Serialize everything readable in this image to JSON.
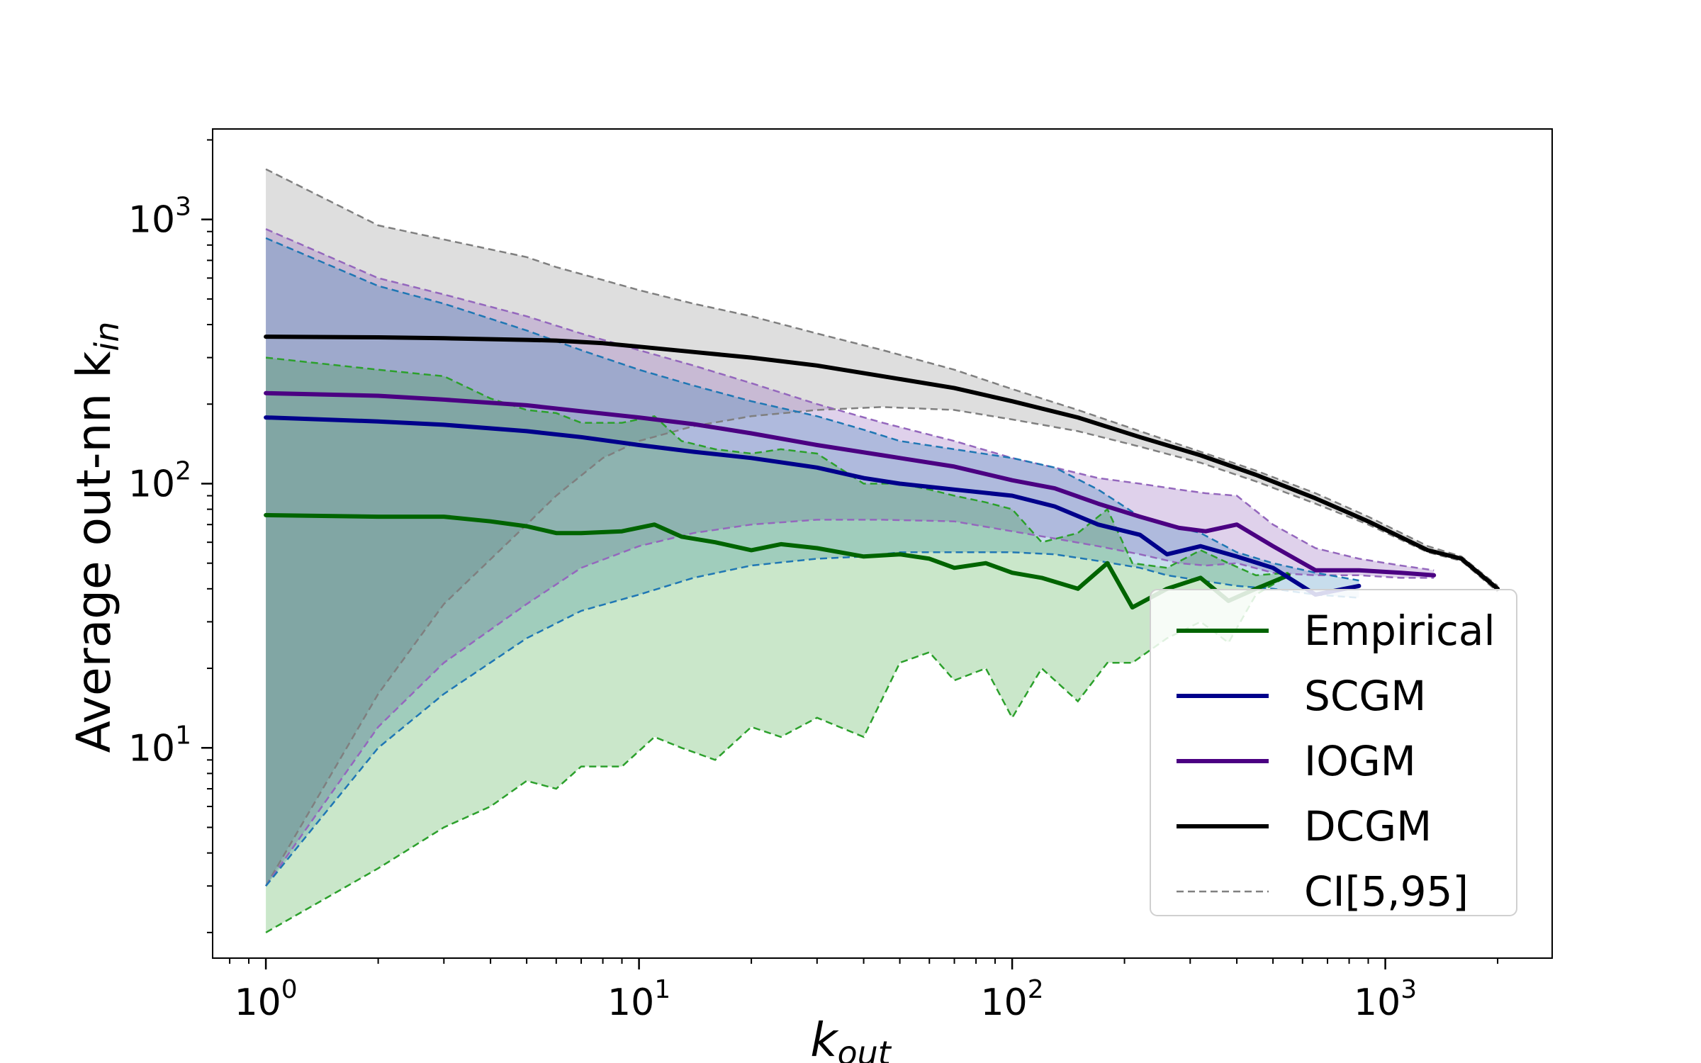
{
  "chart_data": {
    "type": "line",
    "title": "",
    "xlabel": "k",
    "xlabel_sub": "out",
    "ylabel": "Average out-nn k",
    "ylabel_sub": "in",
    "xscale": "log",
    "yscale": "log",
    "xlim": [
      0.72,
      2800
    ],
    "ylim": [
      1.6,
      2200
    ],
    "xticks": [
      {
        "value": 1,
        "base": "10",
        "exp": "0"
      },
      {
        "value": 10,
        "base": "10",
        "exp": "1"
      },
      {
        "value": 100,
        "base": "10",
        "exp": "2"
      },
      {
        "value": 1000,
        "base": "10",
        "exp": "3"
      }
    ],
    "yticks": [
      {
        "value": 10,
        "base": "10",
        "exp": "1"
      },
      {
        "value": 100,
        "base": "10",
        "exp": "2"
      },
      {
        "value": 1000,
        "base": "10",
        "exp": "3"
      }
    ],
    "legend_position": "lower right",
    "ci_label": "CI[5,95]",
    "ci_color": "#808080",
    "series": [
      {
        "name": "DCGM",
        "color": "#000000",
        "band_fill": "#c8c8c8",
        "band_opacity": 0.6,
        "ci_line_color": "#7f7f7f",
        "x": [
          1,
          2,
          3,
          5,
          6,
          8,
          10,
          14,
          20,
          30,
          45,
          70,
          100,
          150,
          220,
          320,
          450,
          650,
          900,
          1300,
          1600,
          2000
        ],
        "y": [
          360,
          358,
          355,
          350,
          348,
          340,
          330,
          315,
          300,
          280,
          255,
          230,
          205,
          178,
          150,
          128,
          108,
          88,
          72,
          56,
          52,
          40
        ],
        "lower": [
          3,
          16,
          35,
          70,
          90,
          125,
          145,
          165,
          180,
          190,
          195,
          190,
          175,
          158,
          138,
          120,
          102,
          84,
          70,
          55,
          51,
          39
        ],
        "upper": [
          1550,
          950,
          840,
          720,
          660,
          590,
          540,
          480,
          430,
          370,
          320,
          270,
          228,
          190,
          158,
          132,
          112,
          92,
          75,
          58,
          53,
          41
        ]
      },
      {
        "name": "IOGM",
        "color": "#4b0082",
        "band_fill": "#9467bd",
        "band_opacity": 0.3,
        "ci_line_color": "#9467bd",
        "x": [
          1,
          2,
          3,
          5,
          7,
          10,
          14,
          20,
          30,
          45,
          70,
          100,
          130,
          170,
          220,
          280,
          330,
          400,
          500,
          650,
          850,
          1100,
          1350
        ],
        "y": [
          220,
          215,
          208,
          198,
          188,
          178,
          168,
          155,
          140,
          128,
          116,
          103,
          96,
          84,
          75,
          68,
          66,
          70,
          58,
          47,
          47,
          46,
          45
        ],
        "lower": [
          3,
          12,
          21,
          35,
          48,
          58,
          65,
          70,
          73,
          73,
          72,
          66,
          62,
          58,
          54,
          50,
          49,
          50,
          46,
          45,
          45,
          44,
          44
        ],
        "upper": [
          920,
          600,
          520,
          430,
          370,
          320,
          280,
          240,
          200,
          170,
          145,
          125,
          115,
          105,
          100,
          95,
          92,
          90,
          70,
          57,
          52,
          49,
          47
        ]
      },
      {
        "name": "SCGM",
        "color": "#00008b",
        "band_fill": "#1f77b4",
        "band_opacity": 0.25,
        "ci_line_color": "#1f77b4",
        "x": [
          1,
          2,
          3,
          5,
          7,
          10,
          14,
          20,
          30,
          40,
          50,
          70,
          100,
          130,
          170,
          220,
          260,
          320,
          400,
          500,
          650,
          850
        ],
        "y": [
          178,
          172,
          167,
          158,
          150,
          140,
          132,
          125,
          115,
          105,
          100,
          95,
          90,
          82,
          70,
          64,
          54,
          58,
          53,
          48,
          38,
          41
        ],
        "lower": [
          3,
          10,
          16,
          26,
          33,
          38,
          44,
          49,
          52,
          53,
          55,
          55,
          55,
          54,
          51,
          48,
          45,
          43,
          41,
          40,
          38,
          37
        ],
        "upper": [
          850,
          560,
          480,
          380,
          320,
          270,
          235,
          205,
          180,
          160,
          145,
          135,
          125,
          115,
          95,
          75,
          70,
          65,
          55,
          50,
          46,
          43
        ]
      },
      {
        "name": "Empirical",
        "color": "#006400",
        "band_fill": "#2ca02c",
        "band_opacity": 0.25,
        "ci_line_color": "#2ca02c",
        "x": [
          1,
          2,
          3,
          4,
          5,
          6,
          7,
          9,
          11,
          13,
          16,
          20,
          24,
          30,
          40,
          50,
          60,
          70,
          85,
          100,
          120,
          150,
          180,
          210,
          260,
          320,
          380,
          450,
          550
        ],
        "y": [
          76,
          75,
          75,
          72,
          69,
          65,
          65,
          66,
          70,
          63,
          60,
          56,
          59,
          57,
          53,
          54,
          52,
          48,
          50,
          46,
          44,
          40,
          50,
          34,
          40,
          44,
          36,
          40,
          45
        ],
        "lower": [
          2,
          3.5,
          5,
          6,
          7.5,
          7,
          8.5,
          8.5,
          11,
          10,
          9,
          12,
          11,
          13,
          11,
          21,
          23,
          18,
          20,
          13,
          20,
          15,
          21,
          21,
          26,
          30,
          25,
          38,
          45
        ],
        "upper": [
          300,
          270,
          255,
          210,
          190,
          185,
          170,
          170,
          180,
          145,
          135,
          130,
          135,
          130,
          100,
          100,
          95,
          90,
          85,
          80,
          60,
          65,
          80,
          50,
          48,
          56,
          50,
          45,
          46
        ]
      }
    ],
    "legend": [
      {
        "label": "Empirical",
        "color": "#006400",
        "style": "solid"
      },
      {
        "label": "SCGM",
        "color": "#00008b",
        "style": "solid"
      },
      {
        "label": "IOGM",
        "color": "#4b0082",
        "style": "solid"
      },
      {
        "label": "DCGM",
        "color": "#000000",
        "style": "solid"
      },
      {
        "label": "CI[5,95]",
        "color": "#808080",
        "style": "dashed"
      }
    ]
  }
}
